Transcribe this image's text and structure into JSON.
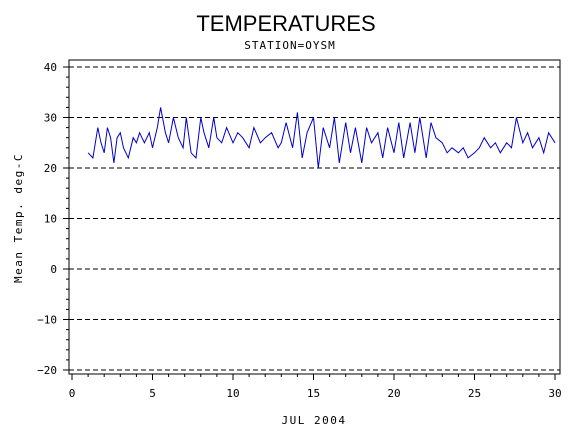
{
  "chart_data": {
    "type": "line",
    "title": "TEMPERATURES",
    "subtitle": "STATION=OYSM",
    "xlabel": "JUL 2004",
    "ylabel": "Mean Temp. deg-C",
    "xlim": [
      0,
      30
    ],
    "ylim": [
      -20,
      40
    ],
    "x_ticks": [
      0,
      5,
      10,
      15,
      20,
      25,
      30
    ],
    "y_ticks": [
      -20,
      -10,
      0,
      10,
      20,
      30,
      40
    ],
    "grid": "dashed horizontal at major y ticks",
    "line_color": "#0000cc",
    "series": [
      {
        "x": [
          1.0,
          1.3,
          1.6,
          1.8,
          2.0,
          2.2,
          2.4,
          2.6,
          2.8,
          3.0,
          3.2,
          3.5,
          3.8,
          4.0,
          4.2,
          4.5,
          4.8,
          5.0,
          5.3,
          5.5,
          5.8,
          6.0,
          6.3,
          6.6,
          6.9,
          7.1,
          7.4,
          7.7,
          8.0,
          8.2,
          8.5,
          8.8,
          9.0,
          9.3,
          9.6,
          10.0,
          10.3,
          10.6,
          11.0,
          11.3,
          11.7,
          12.0,
          12.4,
          12.8,
          13.0,
          13.3,
          13.7,
          14.0,
          14.3,
          14.6,
          15.0,
          15.3,
          15.6,
          16.0,
          16.3,
          16.6,
          17.0,
          17.3,
          17.6,
          18.0,
          18.3,
          18.6,
          19.0,
          19.3,
          19.6,
          20.0,
          20.3,
          20.6,
          21.0,
          21.3,
          21.6,
          22.0,
          22.3,
          22.6,
          23.0,
          23.3,
          23.6,
          24.0,
          24.3,
          24.6,
          25.0,
          25.3,
          25.6,
          26.0,
          26.3,
          26.6,
          27.0,
          27.3,
          27.6,
          28.0,
          28.3,
          28.6,
          29.0,
          29.3,
          29.6,
          30.0
        ],
        "values": [
          23,
          22,
          28,
          25,
          23,
          28,
          26,
          21,
          26,
          27,
          24,
          22,
          26,
          25,
          27,
          25,
          27,
          24,
          28,
          32,
          27,
          25,
          30,
          26,
          24,
          30,
          23,
          22,
          30,
          27,
          24,
          30,
          26,
          25,
          28,
          25,
          27,
          26,
          24,
          28,
          25,
          26,
          27,
          24,
          25,
          29,
          24,
          31,
          22,
          27,
          30,
          20,
          28,
          24,
          30,
          21,
          29,
          23,
          28,
          21,
          28,
          25,
          27,
          22,
          28,
          23,
          29,
          22,
          29,
          23,
          30,
          22,
          29,
          26,
          25,
          23,
          24,
          23,
          24,
          22,
          23,
          24,
          26,
          24,
          25,
          23,
          25,
          24,
          30,
          25,
          27,
          24,
          26,
          23,
          27,
          25
        ]
      }
    ]
  }
}
